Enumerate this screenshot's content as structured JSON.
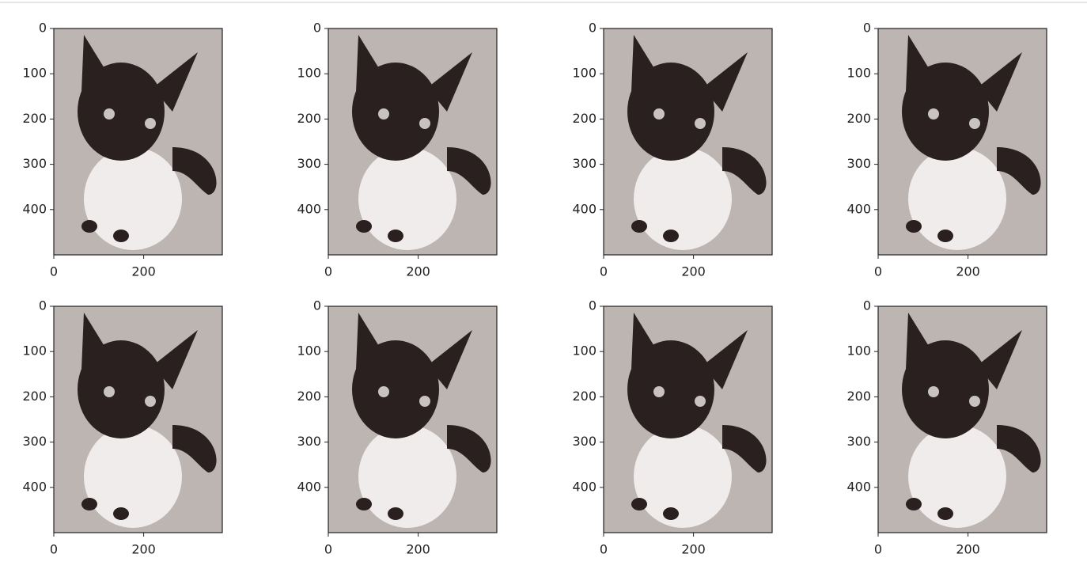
{
  "chart_data": [
    {
      "type": "image",
      "xlim": [
        0,
        375
      ],
      "ylim": [
        500,
        0
      ],
      "xticks": [
        0,
        200
      ],
      "yticks": [
        0,
        100,
        200,
        300,
        400
      ]
    },
    {
      "type": "image",
      "xlim": [
        0,
        375
      ],
      "ylim": [
        500,
        0
      ],
      "xticks": [
        0,
        200
      ],
      "yticks": [
        0,
        100,
        200,
        300,
        400
      ]
    },
    {
      "type": "image",
      "xlim": [
        0,
        375
      ],
      "ylim": [
        500,
        0
      ],
      "xticks": [
        0,
        200
      ],
      "yticks": [
        0,
        100,
        200,
        300,
        400
      ]
    },
    {
      "type": "image",
      "xlim": [
        0,
        375
      ],
      "ylim": [
        500,
        0
      ],
      "xticks": [
        0,
        200
      ],
      "yticks": [
        0,
        100,
        200,
        300,
        400
      ]
    },
    {
      "type": "image",
      "xlim": [
        0,
        375
      ],
      "ylim": [
        500,
        0
      ],
      "xticks": [
        0,
        200
      ],
      "yticks": [
        0,
        100,
        200,
        300,
        400
      ]
    },
    {
      "type": "image",
      "xlim": [
        0,
        375
      ],
      "ylim": [
        500,
        0
      ],
      "xticks": [
        0,
        200
      ],
      "yticks": [
        0,
        100,
        200,
        300,
        400
      ]
    },
    {
      "type": "image",
      "xlim": [
        0,
        375
      ],
      "ylim": [
        500,
        0
      ],
      "xticks": [
        0,
        200
      ],
      "yticks": [
        0,
        100,
        200,
        300,
        400
      ]
    },
    {
      "type": "image",
      "xlim": [
        0,
        375
      ],
      "ylim": [
        500,
        0
      ],
      "xticks": [
        0,
        200
      ],
      "yticks": [
        0,
        100,
        200,
        300,
        400
      ]
    }
  ]
}
